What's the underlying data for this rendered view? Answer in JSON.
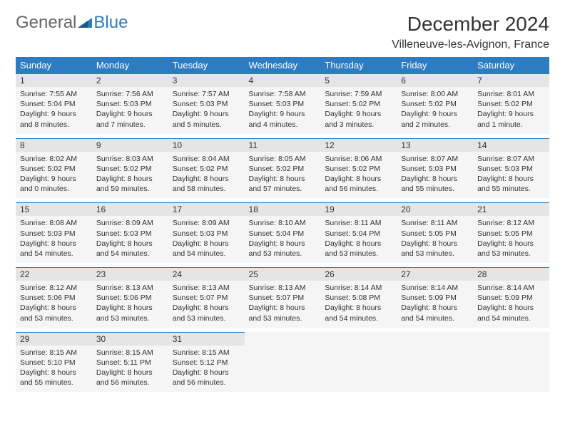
{
  "logo": {
    "text1": "General",
    "text2": "Blue"
  },
  "title": "December 2024",
  "location": "Villeneuve-les-Avignon, France",
  "colors": {
    "header_bg": "#2d7cc1",
    "header_fg": "#ffffff",
    "daynum_bg": "#e5e5e5",
    "cell_bg": "#f5f5f5",
    "text": "#333333",
    "logo_gray": "#666666",
    "logo_blue": "#2d7cc1"
  },
  "dow": [
    "Sunday",
    "Monday",
    "Tuesday",
    "Wednesday",
    "Thursday",
    "Friday",
    "Saturday"
  ],
  "weeks": [
    [
      {
        "n": "1",
        "sr": "7:55 AM",
        "ss": "5:04 PM",
        "dl": "9 hours and 8 minutes."
      },
      {
        "n": "2",
        "sr": "7:56 AM",
        "ss": "5:03 PM",
        "dl": "9 hours and 7 minutes."
      },
      {
        "n": "3",
        "sr": "7:57 AM",
        "ss": "5:03 PM",
        "dl": "9 hours and 5 minutes."
      },
      {
        "n": "4",
        "sr": "7:58 AM",
        "ss": "5:03 PM",
        "dl": "9 hours and 4 minutes."
      },
      {
        "n": "5",
        "sr": "7:59 AM",
        "ss": "5:02 PM",
        "dl": "9 hours and 3 minutes."
      },
      {
        "n": "6",
        "sr": "8:00 AM",
        "ss": "5:02 PM",
        "dl": "9 hours and 2 minutes."
      },
      {
        "n": "7",
        "sr": "8:01 AM",
        "ss": "5:02 PM",
        "dl": "9 hours and 1 minute."
      }
    ],
    [
      {
        "n": "8",
        "sr": "8:02 AM",
        "ss": "5:02 PM",
        "dl": "9 hours and 0 minutes."
      },
      {
        "n": "9",
        "sr": "8:03 AM",
        "ss": "5:02 PM",
        "dl": "8 hours and 59 minutes."
      },
      {
        "n": "10",
        "sr": "8:04 AM",
        "ss": "5:02 PM",
        "dl": "8 hours and 58 minutes."
      },
      {
        "n": "11",
        "sr": "8:05 AM",
        "ss": "5:02 PM",
        "dl": "8 hours and 57 minutes."
      },
      {
        "n": "12",
        "sr": "8:06 AM",
        "ss": "5:02 PM",
        "dl": "8 hours and 56 minutes."
      },
      {
        "n": "13",
        "sr": "8:07 AM",
        "ss": "5:03 PM",
        "dl": "8 hours and 55 minutes."
      },
      {
        "n": "14",
        "sr": "8:07 AM",
        "ss": "5:03 PM",
        "dl": "8 hours and 55 minutes."
      }
    ],
    [
      {
        "n": "15",
        "sr": "8:08 AM",
        "ss": "5:03 PM",
        "dl": "8 hours and 54 minutes."
      },
      {
        "n": "16",
        "sr": "8:09 AM",
        "ss": "5:03 PM",
        "dl": "8 hours and 54 minutes."
      },
      {
        "n": "17",
        "sr": "8:09 AM",
        "ss": "5:03 PM",
        "dl": "8 hours and 54 minutes."
      },
      {
        "n": "18",
        "sr": "8:10 AM",
        "ss": "5:04 PM",
        "dl": "8 hours and 53 minutes."
      },
      {
        "n": "19",
        "sr": "8:11 AM",
        "ss": "5:04 PM",
        "dl": "8 hours and 53 minutes."
      },
      {
        "n": "20",
        "sr": "8:11 AM",
        "ss": "5:05 PM",
        "dl": "8 hours and 53 minutes."
      },
      {
        "n": "21",
        "sr": "8:12 AM",
        "ss": "5:05 PM",
        "dl": "8 hours and 53 minutes."
      }
    ],
    [
      {
        "n": "22",
        "sr": "8:12 AM",
        "ss": "5:06 PM",
        "dl": "8 hours and 53 minutes."
      },
      {
        "n": "23",
        "sr": "8:13 AM",
        "ss": "5:06 PM",
        "dl": "8 hours and 53 minutes."
      },
      {
        "n": "24",
        "sr": "8:13 AM",
        "ss": "5:07 PM",
        "dl": "8 hours and 53 minutes."
      },
      {
        "n": "25",
        "sr": "8:13 AM",
        "ss": "5:07 PM",
        "dl": "8 hours and 53 minutes."
      },
      {
        "n": "26",
        "sr": "8:14 AM",
        "ss": "5:08 PM",
        "dl": "8 hours and 54 minutes."
      },
      {
        "n": "27",
        "sr": "8:14 AM",
        "ss": "5:09 PM",
        "dl": "8 hours and 54 minutes."
      },
      {
        "n": "28",
        "sr": "8:14 AM",
        "ss": "5:09 PM",
        "dl": "8 hours and 54 minutes."
      }
    ],
    [
      {
        "n": "29",
        "sr": "8:15 AM",
        "ss": "5:10 PM",
        "dl": "8 hours and 55 minutes."
      },
      {
        "n": "30",
        "sr": "8:15 AM",
        "ss": "5:11 PM",
        "dl": "8 hours and 56 minutes."
      },
      {
        "n": "31",
        "sr": "8:15 AM",
        "ss": "5:12 PM",
        "dl": "8 hours and 56 minutes."
      },
      null,
      null,
      null,
      null
    ]
  ],
  "labels": {
    "sunrise": "Sunrise:",
    "sunset": "Sunset:",
    "daylight": "Daylight:"
  }
}
